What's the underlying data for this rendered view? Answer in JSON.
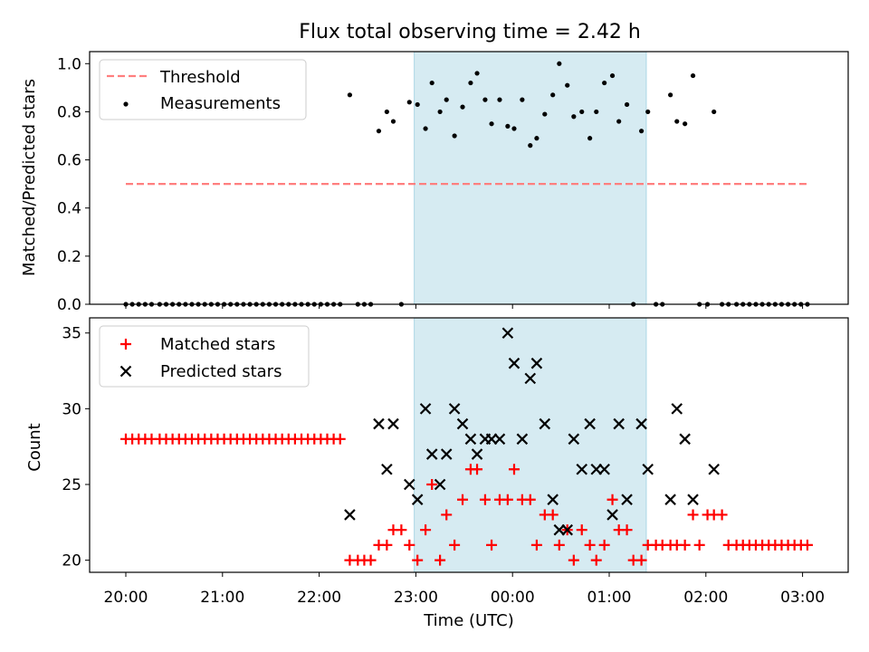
{
  "figure": {
    "title": "Flux total observing time = 2.42 h",
    "xlabel": "Time (UTC)",
    "x_tick_labels": [
      "20:00",
      "21:00",
      "22:00",
      "23:00",
      "00:00",
      "01:00",
      "02:00",
      "03:00"
    ],
    "highlight_band": {
      "start": "22:59",
      "end": "01:23",
      "color": "#add8e6"
    }
  },
  "chart_data": [
    {
      "type": "scatter",
      "ylabel": "Matched/Predicted stars",
      "ylim": [
        0,
        1.05
      ],
      "y_ticks": [
        "0.0",
        "0.2",
        "0.4",
        "0.6",
        "0.8",
        "1.0"
      ],
      "legend": {
        "placement": "top-left",
        "threshold_label": "Threshold",
        "measurements_label": "Measurements"
      },
      "threshold": {
        "name": "Threshold",
        "value": 0.5,
        "x_start": "20:00",
        "x_end": "03:03",
        "color": "#ff7f7f",
        "style": "dashed"
      },
      "series": [
        {
          "name": "Measurements",
          "color": "#000000",
          "marker": "dot",
          "points": [
            [
              "20:00",
              0
            ],
            [
              "20:04",
              0
            ],
            [
              "20:08",
              0
            ],
            [
              "20:12",
              0
            ],
            [
              "20:16",
              0
            ],
            [
              "20:21",
              0
            ],
            [
              "20:25",
              0
            ],
            [
              "20:29",
              0
            ],
            [
              "20:33",
              0
            ],
            [
              "20:37",
              0
            ],
            [
              "20:41",
              0
            ],
            [
              "20:45",
              0
            ],
            [
              "20:49",
              0
            ],
            [
              "20:53",
              0
            ],
            [
              "20:57",
              0
            ],
            [
              "21:01",
              0
            ],
            [
              "21:05",
              0
            ],
            [
              "21:09",
              0
            ],
            [
              "21:13",
              0
            ],
            [
              "21:17",
              0
            ],
            [
              "21:21",
              0
            ],
            [
              "21:25",
              0
            ],
            [
              "21:29",
              0
            ],
            [
              "21:33",
              0
            ],
            [
              "21:37",
              0
            ],
            [
              "21:41",
              0
            ],
            [
              "21:45",
              0
            ],
            [
              "21:49",
              0
            ],
            [
              "21:53",
              0
            ],
            [
              "21:57",
              0
            ],
            [
              "22:01",
              0
            ],
            [
              "22:05",
              0
            ],
            [
              "22:09",
              0
            ],
            [
              "22:13",
              0
            ],
            [
              "22:19",
              0.87
            ],
            [
              "22:24",
              0
            ],
            [
              "22:28",
              0
            ],
            [
              "22:32",
              0
            ],
            [
              "22:37",
              0.72
            ],
            [
              "22:42",
              0.8
            ],
            [
              "22:46",
              0.76
            ],
            [
              "22:51",
              0
            ],
            [
              "22:56",
              0.84
            ],
            [
              "23:01",
              0.83
            ],
            [
              "23:06",
              0.73
            ],
            [
              "23:10",
              0.92
            ],
            [
              "23:15",
              0.8
            ],
            [
              "23:19",
              0.85
            ],
            [
              "23:24",
              0.7
            ],
            [
              "23:29",
              0.82
            ],
            [
              "23:34",
              0.92
            ],
            [
              "23:38",
              0.96
            ],
            [
              "23:43",
              0.85
            ],
            [
              "23:47",
              0.75
            ],
            [
              "23:52",
              0.85
            ],
            [
              "23:57",
              0.74
            ],
            [
              "00:01",
              0.73
            ],
            [
              "00:06",
              0.85
            ],
            [
              "00:11",
              0.66
            ],
            [
              "00:15",
              0.69
            ],
            [
              "00:20",
              0.79
            ],
            [
              "00:25",
              0.87
            ],
            [
              "00:29",
              1.0
            ],
            [
              "00:34",
              0.91
            ],
            [
              "00:38",
              0.78
            ],
            [
              "00:43",
              0.8
            ],
            [
              "00:48",
              0.69
            ],
            [
              "00:52",
              0.8
            ],
            [
              "00:57",
              0.92
            ],
            [
              "01:02",
              0.95
            ],
            [
              "01:06",
              0.76
            ],
            [
              "01:11",
              0.83
            ],
            [
              "01:15",
              0
            ],
            [
              "01:20",
              0.72
            ],
            [
              "01:24",
              0.8
            ],
            [
              "01:29",
              0
            ],
            [
              "01:33",
              0
            ],
            [
              "01:38",
              0.87
            ],
            [
              "01:42",
              0.76
            ],
            [
              "01:47",
              0.75
            ],
            [
              "01:52",
              0.95
            ],
            [
              "01:56",
              0
            ],
            [
              "02:01",
              0
            ],
            [
              "02:05",
              0.8
            ],
            [
              "02:10",
              0
            ],
            [
              "02:14",
              0
            ],
            [
              "02:19",
              0
            ],
            [
              "02:23",
              0
            ],
            [
              "02:27",
              0
            ],
            [
              "02:31",
              0
            ],
            [
              "02:35",
              0
            ],
            [
              "02:39",
              0
            ],
            [
              "02:43",
              0
            ],
            [
              "02:47",
              0
            ],
            [
              "02:51",
              0
            ],
            [
              "02:55",
              0
            ],
            [
              "02:59",
              0
            ],
            [
              "03:03",
              0
            ]
          ]
        }
      ]
    },
    {
      "type": "scatter",
      "ylabel": "Count",
      "ylim": [
        19.2,
        36
      ],
      "y_ticks": [
        "20",
        "25",
        "30",
        "35"
      ],
      "legend": {
        "placement": "top-left",
        "matched_label": "Matched stars",
        "predicted_label": "Predicted stars"
      },
      "series": [
        {
          "name": "Matched stars",
          "color": "#ff0000",
          "marker": "plus",
          "points": [
            [
              "20:00",
              28
            ],
            [
              "20:04",
              28
            ],
            [
              "20:08",
              28
            ],
            [
              "20:12",
              28
            ],
            [
              "20:16",
              28
            ],
            [
              "20:21",
              28
            ],
            [
              "20:25",
              28
            ],
            [
              "20:29",
              28
            ],
            [
              "20:33",
              28
            ],
            [
              "20:37",
              28
            ],
            [
              "20:41",
              28
            ],
            [
              "20:45",
              28
            ],
            [
              "20:49",
              28
            ],
            [
              "20:53",
              28
            ],
            [
              "20:57",
              28
            ],
            [
              "21:01",
              28
            ],
            [
              "21:05",
              28
            ],
            [
              "21:09",
              28
            ],
            [
              "21:13",
              28
            ],
            [
              "21:17",
              28
            ],
            [
              "21:21",
              28
            ],
            [
              "21:25",
              28
            ],
            [
              "21:29",
              28
            ],
            [
              "21:33",
              28
            ],
            [
              "21:37",
              28
            ],
            [
              "21:41",
              28
            ],
            [
              "21:45",
              28
            ],
            [
              "21:49",
              28
            ],
            [
              "21:53",
              28
            ],
            [
              "21:57",
              28
            ],
            [
              "22:01",
              28
            ],
            [
              "22:05",
              28
            ],
            [
              "22:09",
              28
            ],
            [
              "22:13",
              28
            ],
            [
              "22:19",
              20
            ],
            [
              "22:24",
              20
            ],
            [
              "22:28",
              20
            ],
            [
              "22:32",
              20
            ],
            [
              "22:37",
              21
            ],
            [
              "22:42",
              21
            ],
            [
              "22:46",
              22
            ],
            [
              "22:51",
              22
            ],
            [
              "22:56",
              21
            ],
            [
              "23:01",
              20
            ],
            [
              "23:06",
              22
            ],
            [
              "23:10",
              25
            ],
            [
              "23:15",
              20
            ],
            [
              "23:19",
              23
            ],
            [
              "23:24",
              21
            ],
            [
              "23:29",
              24
            ],
            [
              "23:34",
              26
            ],
            [
              "23:38",
              26
            ],
            [
              "23:43",
              24
            ],
            [
              "23:47",
              21
            ],
            [
              "23:52",
              24
            ],
            [
              "23:57",
              24
            ],
            [
              "00:01",
              26
            ],
            [
              "00:06",
              24
            ],
            [
              "00:11",
              24
            ],
            [
              "00:15",
              21
            ],
            [
              "00:20",
              23
            ],
            [
              "00:25",
              23
            ],
            [
              "00:29",
              21
            ],
            [
              "00:34",
              22
            ],
            [
              "00:38",
              20
            ],
            [
              "00:43",
              22
            ],
            [
              "00:48",
              21
            ],
            [
              "00:52",
              20
            ],
            [
              "00:57",
              21
            ],
            [
              "01:02",
              24
            ],
            [
              "01:06",
              22
            ],
            [
              "01:11",
              22
            ],
            [
              "01:15",
              20
            ],
            [
              "01:20",
              20
            ],
            [
              "01:24",
              21
            ],
            [
              "01:29",
              21
            ],
            [
              "01:33",
              21
            ],
            [
              "01:38",
              21
            ],
            [
              "01:42",
              21
            ],
            [
              "01:47",
              21
            ],
            [
              "01:52",
              23
            ],
            [
              "01:56",
              21
            ],
            [
              "02:01",
              23
            ],
            [
              "02:05",
              23
            ],
            [
              "02:10",
              23
            ],
            [
              "02:14",
              21
            ],
            [
              "02:19",
              21
            ],
            [
              "02:23",
              21
            ],
            [
              "02:27",
              21
            ],
            [
              "02:31",
              21
            ],
            [
              "02:35",
              21
            ],
            [
              "02:39",
              21
            ],
            [
              "02:43",
              21
            ],
            [
              "02:47",
              21
            ],
            [
              "02:51",
              21
            ],
            [
              "02:55",
              21
            ],
            [
              "02:59",
              21
            ],
            [
              "03:03",
              21
            ]
          ]
        },
        {
          "name": "Predicted stars",
          "color": "#000000",
          "marker": "x",
          "points": [
            [
              "22:19",
              23
            ],
            [
              "22:37",
              29
            ],
            [
              "22:42",
              26
            ],
            [
              "22:46",
              29
            ],
            [
              "22:56",
              25
            ],
            [
              "23:01",
              24
            ],
            [
              "23:06",
              30
            ],
            [
              "23:10",
              27
            ],
            [
              "23:15",
              25
            ],
            [
              "23:19",
              27
            ],
            [
              "23:24",
              30
            ],
            [
              "23:29",
              29
            ],
            [
              "23:34",
              28
            ],
            [
              "23:38",
              27
            ],
            [
              "23:43",
              28
            ],
            [
              "23:47",
              28
            ],
            [
              "23:52",
              28
            ],
            [
              "23:57",
              35
            ],
            [
              "00:01",
              33
            ],
            [
              "00:06",
              28
            ],
            [
              "00:11",
              32
            ],
            [
              "00:15",
              33
            ],
            [
              "00:20",
              29
            ],
            [
              "00:25",
              24
            ],
            [
              "00:29",
              22
            ],
            [
              "00:34",
              22
            ],
            [
              "00:38",
              28
            ],
            [
              "00:43",
              26
            ],
            [
              "00:48",
              29
            ],
            [
              "00:52",
              26
            ],
            [
              "00:57",
              26
            ],
            [
              "01:02",
              23
            ],
            [
              "01:06",
              29
            ],
            [
              "01:11",
              24
            ],
            [
              "01:20",
              29
            ],
            [
              "01:24",
              26
            ],
            [
              "01:38",
              24
            ],
            [
              "01:42",
              30
            ],
            [
              "01:47",
              28
            ],
            [
              "01:52",
              24
            ],
            [
              "02:05",
              26
            ]
          ]
        }
      ]
    }
  ]
}
